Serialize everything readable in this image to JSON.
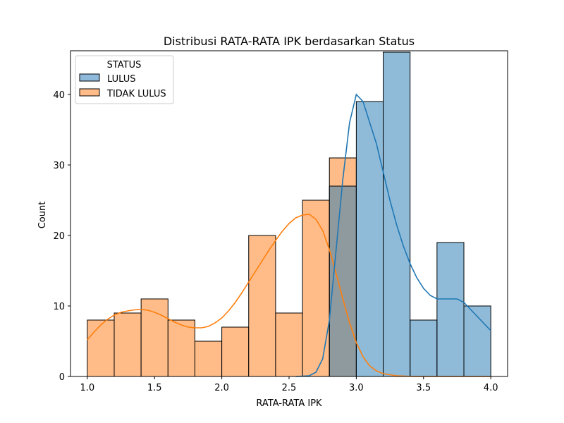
{
  "chart_data": {
    "type": "histogram",
    "title": "Distribusi RATA-RATA IPK berdasarkan Status",
    "xlabel": "RATA-RATA IPK",
    "ylabel": "Count",
    "xlim": [
      0.875,
      4.125
    ],
    "ylim": [
      0,
      46.2
    ],
    "x_ticks": [
      1.0,
      1.5,
      2.0,
      2.5,
      3.0,
      3.5,
      4.0
    ],
    "x_tick_labels": [
      "1.0",
      "1.5",
      "2.0",
      "2.5",
      "3.0",
      "3.5",
      "4.0"
    ],
    "y_ticks": [
      0,
      10,
      20,
      30,
      40
    ],
    "y_tick_labels": [
      "0",
      "10",
      "20",
      "30",
      "40"
    ],
    "grid": false,
    "bin_edges": [
      1.0,
      1.2,
      1.4,
      1.6,
      1.8,
      2.0,
      2.2,
      2.4,
      2.6,
      2.8,
      3.0,
      3.2,
      3.4,
      3.6,
      3.8,
      4.0
    ],
    "legend": {
      "title": "STATUS",
      "placement": "top-left"
    },
    "series": [
      {
        "name": "LULUS",
        "color": "#1f77b4",
        "fill": "#8fb9db",
        "counts": [
          0,
          0,
          0,
          0,
          0,
          0,
          0,
          0,
          0,
          27,
          39,
          46,
          8,
          19,
          10
        ],
        "kde": [
          [
            2.55,
            0
          ],
          [
            2.65,
            0.1
          ],
          [
            2.7,
            0.6
          ],
          [
            2.75,
            2.5
          ],
          [
            2.8,
            8
          ],
          [
            2.85,
            18
          ],
          [
            2.9,
            28
          ],
          [
            2.95,
            36
          ],
          [
            3.0,
            40
          ],
          [
            3.05,
            39
          ],
          [
            3.1,
            36
          ],
          [
            3.15,
            33
          ],
          [
            3.2,
            29
          ],
          [
            3.25,
            25
          ],
          [
            3.3,
            21.5
          ],
          [
            3.35,
            18.5
          ],
          [
            3.4,
            16
          ],
          [
            3.45,
            14
          ],
          [
            3.5,
            12.5
          ],
          [
            3.55,
            11.5
          ],
          [
            3.6,
            11
          ],
          [
            3.65,
            11
          ],
          [
            3.7,
            11
          ],
          [
            3.75,
            11
          ],
          [
            3.8,
            10.5
          ],
          [
            3.85,
            9.5
          ],
          [
            3.9,
            8.5
          ],
          [
            3.95,
            7.5
          ],
          [
            4.0,
            6.5
          ]
        ]
      },
      {
        "name": "TIDAK LULUS",
        "color": "#ff7f0e",
        "fill": "#ffbc88",
        "counts": [
          8,
          9,
          11,
          8,
          5,
          7,
          20,
          9,
          25,
          31,
          0,
          0,
          0,
          0,
          0
        ],
        "kde": [
          [
            1.0,
            5.2
          ],
          [
            1.05,
            6.3
          ],
          [
            1.1,
            7.3
          ],
          [
            1.15,
            8.1
          ],
          [
            1.2,
            8.7
          ],
          [
            1.25,
            9.1
          ],
          [
            1.3,
            9.3
          ],
          [
            1.35,
            9.45
          ],
          [
            1.4,
            9.5
          ],
          [
            1.45,
            9.4
          ],
          [
            1.5,
            9.1
          ],
          [
            1.55,
            8.7
          ],
          [
            1.6,
            8.2
          ],
          [
            1.65,
            7.7
          ],
          [
            1.7,
            7.3
          ],
          [
            1.75,
            7.0
          ],
          [
            1.8,
            6.9
          ],
          [
            1.85,
            6.9
          ],
          [
            1.9,
            7.1
          ],
          [
            1.95,
            7.6
          ],
          [
            2.0,
            8.3
          ],
          [
            2.05,
            9.3
          ],
          [
            2.1,
            10.5
          ],
          [
            2.15,
            11.9
          ],
          [
            2.2,
            13.4
          ],
          [
            2.25,
            14.9
          ],
          [
            2.3,
            16.4
          ],
          [
            2.35,
            17.9
          ],
          [
            2.4,
            19.3
          ],
          [
            2.45,
            20.6
          ],
          [
            2.5,
            21.7
          ],
          [
            2.55,
            22.5
          ],
          [
            2.6,
            22.9
          ],
          [
            2.65,
            23.0
          ],
          [
            2.7,
            22.3
          ],
          [
            2.75,
            20.7
          ],
          [
            2.8,
            18.0
          ],
          [
            2.85,
            14.6
          ],
          [
            2.9,
            11.0
          ],
          [
            2.95,
            7.6
          ],
          [
            3.0,
            4.8
          ],
          [
            3.05,
            2.8
          ],
          [
            3.1,
            1.5
          ],
          [
            3.15,
            0.8
          ],
          [
            3.2,
            0.4
          ],
          [
            3.3,
            0.1
          ],
          [
            3.4,
            0.02
          ],
          [
            3.5,
            0
          ],
          [
            4.0,
            0
          ]
        ]
      }
    ]
  }
}
